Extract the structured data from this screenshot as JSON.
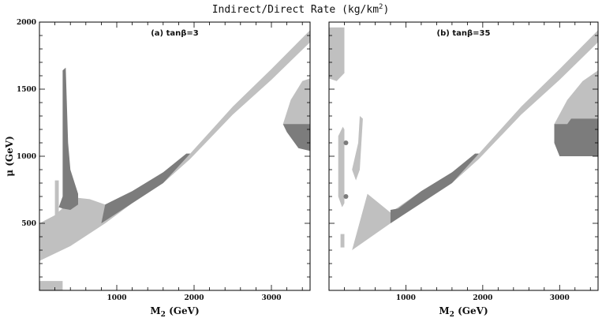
{
  "figure": {
    "title": "Indirect/Direct Rate (kg/km",
    "title_sup": "2",
    "title_end": ")"
  },
  "chart_data": [
    {
      "type": "area",
      "panel_label": "(a) tanβ=3",
      "xlabel": "M",
      "xlabel_sub": "2",
      "xlabel_unit": " (GeV)",
      "ylabel": "μ (GeV)",
      "xlim": [
        0,
        3500
      ],
      "ylim": [
        0,
        2000
      ],
      "xticks": [
        1000,
        2000,
        3000
      ],
      "yticks": [
        500,
        1000,
        1500,
        2000
      ],
      "grid": false,
      "colors": {
        "light": "#c0c0c0",
        "dark": "#7c7c7c"
      },
      "regions": [
        {
          "shade": "light",
          "points": [
            [
              0,
              500
            ],
            [
              200,
              560
            ],
            [
              350,
              640
            ],
            [
              500,
              690
            ],
            [
              650,
              680
            ],
            [
              850,
              640
            ],
            [
              1200,
              740
            ],
            [
              1600,
              880
            ],
            [
              1950,
              1020
            ],
            [
              2500,
              1370
            ],
            [
              3000,
              1650
            ],
            [
              3500,
              1940
            ],
            [
              3500,
              1850
            ],
            [
              3000,
              1570
            ],
            [
              2500,
              1310
            ],
            [
              1950,
              980
            ],
            [
              1600,
              800
            ],
            [
              1200,
              650
            ],
            [
              850,
              500
            ],
            [
              400,
              330
            ],
            [
              0,
              220
            ]
          ]
        },
        {
          "shade": "light",
          "points": [
            [
              200,
              450
            ],
            [
              200,
              820
            ],
            [
              250,
              820
            ],
            [
              250,
              560
            ]
          ]
        },
        {
          "shade": "dark",
          "points": [
            [
              250,
              620
            ],
            [
              300,
              700
            ],
            [
              300,
              1640
            ],
            [
              340,
              1660
            ],
            [
              370,
              1100
            ],
            [
              400,
              900
            ],
            [
              500,
              720
            ],
            [
              500,
              640
            ],
            [
              400,
              600
            ],
            [
              300,
              610
            ]
          ]
        },
        {
          "shade": "dark",
          "points": [
            [
              800,
              500
            ],
            [
              850,
              640
            ],
            [
              1200,
              740
            ],
            [
              1600,
              880
            ],
            [
              1900,
              1020
            ],
            [
              1950,
              1020
            ],
            [
              1600,
              800
            ],
            [
              1200,
              650
            ]
          ]
        },
        {
          "shade": "light",
          "points": [
            [
              3150,
              1240
            ],
            [
              3250,
              1420
            ],
            [
              3400,
              1560
            ],
            [
              3500,
              1580
            ],
            [
              3500,
              1040
            ],
            [
              3350,
              1060
            ],
            [
              3200,
              1180
            ]
          ]
        },
        {
          "shade": "dark",
          "points": [
            [
              3150,
              1240
            ],
            [
              3500,
              1240
            ],
            [
              3500,
              1040
            ],
            [
              3350,
              1060
            ],
            [
              3200,
              1180
            ]
          ]
        },
        {
          "shade": "light",
          "points": [
            [
              0,
              0
            ],
            [
              0,
              70
            ],
            [
              300,
              70
            ],
            [
              300,
              0
            ]
          ]
        }
      ]
    },
    {
      "type": "area",
      "panel_label": "(b) tanβ=35",
      "xlabel": "M",
      "xlabel_sub": "2",
      "xlabel_unit": " (GeV)",
      "ylabel": "",
      "xlim": [
        0,
        3500
      ],
      "ylim": [
        0,
        2000
      ],
      "xticks": [
        1000,
        2000,
        3000
      ],
      "yticks": [
        500,
        1000,
        1500,
        2000
      ],
      "grid": false,
      "colors": {
        "light": "#c0c0c0",
        "dark": "#7c7c7c"
      },
      "regions": [
        {
          "shade": "light",
          "points": [
            [
              0,
              1580
            ],
            [
              0,
              1960
            ],
            [
              200,
              1960
            ],
            [
              200,
              1620
            ],
            [
              100,
              1560
            ]
          ]
        },
        {
          "shade": "light",
          "points": [
            [
              120,
              1150
            ],
            [
              180,
              1220
            ],
            [
              200,
              1200
            ],
            [
              200,
              650
            ],
            [
              170,
              620
            ],
            [
              120,
              700
            ]
          ]
        },
        {
          "shade": "light",
          "points": [
            [
              300,
              900
            ],
            [
              380,
              1100
            ],
            [
              400,
              1300
            ],
            [
              440,
              1280
            ],
            [
              400,
              900
            ],
            [
              350,
              820
            ]
          ]
        },
        {
          "shade": "light",
          "points": [
            [
              150,
              320
            ],
            [
              150,
              420
            ],
            [
              200,
              420
            ],
            [
              200,
              320
            ]
          ]
        },
        {
          "shade": "light",
          "points": [
            [
              300,
              300
            ],
            [
              500,
              720
            ],
            [
              800,
              580
            ],
            [
              1200,
              740
            ],
            [
              1600,
              880
            ],
            [
              1950,
              1020
            ],
            [
              2500,
              1370
            ],
            [
              3000,
              1650
            ],
            [
              3500,
              1940
            ],
            [
              3500,
              1850
            ],
            [
              3000,
              1570
            ],
            [
              2500,
              1310
            ],
            [
              1950,
              980
            ],
            [
              1600,
              800
            ],
            [
              1200,
              650
            ],
            [
              800,
              500
            ]
          ]
        },
        {
          "shade": "dark",
          "points": [
            [
              800,
              500
            ],
            [
              800,
              600
            ],
            [
              900,
              610
            ],
            [
              1200,
              740
            ],
            [
              1600,
              880
            ],
            [
              1900,
              1020
            ],
            [
              1950,
              1020
            ],
            [
              1600,
              800
            ],
            [
              1200,
              650
            ]
          ]
        },
        {
          "shade": "light",
          "points": [
            [
              2930,
              1240
            ],
            [
              3100,
              1420
            ],
            [
              3300,
              1560
            ],
            [
              3500,
              1640
            ],
            [
              3500,
              1000
            ],
            [
              3000,
              1000
            ],
            [
              2930,
              1100
            ]
          ]
        },
        {
          "shade": "dark",
          "points": [
            [
              2930,
              1240
            ],
            [
              3100,
              1240
            ],
            [
              3150,
              1280
            ],
            [
              3500,
              1280
            ],
            [
              3500,
              1000
            ],
            [
              3000,
              1000
            ],
            [
              2930,
              1100
            ]
          ]
        }
      ],
      "dots": [
        [
          220,
          1100
        ],
        [
          220,
          700
        ]
      ]
    }
  ]
}
